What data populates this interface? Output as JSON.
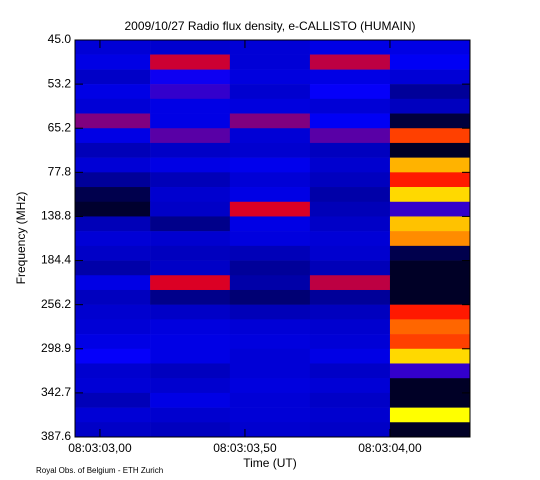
{
  "chart_data": {
    "type": "heatmap",
    "title": "2009/10/27  Radio flux density, e-CALLISTO (HUMAIN)",
    "x_label": "Time (UT)",
    "y_label": "Frequency (MHz)",
    "footer": "Royal Obs. of Belgium - ETH Zurich",
    "xbins": [
      28982.914,
      28983.173,
      28983.448,
      28983.724,
      28984.0,
      28984.276
    ],
    "xlim": [
      28982.914,
      28984.276
    ],
    "xticks": [
      {
        "value": 28983.0,
        "label": "08:03:03,00"
      },
      {
        "value": 28983.5,
        "label": "08:03:03,50"
      },
      {
        "value": 28984.0,
        "label": "08:03:04,00"
      }
    ],
    "ybins": [
      45.0,
      47.7,
      50.5,
      53.2,
      57.2,
      61.2,
      65.2,
      69.4,
      73.6,
      77.8,
      98.1,
      118.5,
      138.8,
      154.0,
      169.2,
      184.4,
      208.3,
      232.3,
      256.2,
      270.4,
      284.7,
      298.9,
      313.5,
      328.1,
      342.7,
      357.7,
      372.6,
      387.6
    ],
    "ylim": [
      45.0,
      387.6
    ],
    "yticks": [
      {
        "value": 45.0,
        "label": "45.0"
      },
      53.2,
      65.2,
      77.8,
      138.8,
      184.4,
      256.2,
      298.9,
      342.7,
      387.6
    ],
    "zlim": [
      0,
      100
    ],
    "colorscale": [
      "#000000",
      "#0000ff",
      "#ff0000",
      "#ffff00"
    ],
    "values": [
      [
        28,
        27,
        28,
        30,
        30
      ],
      [
        30,
        60,
        28,
        58,
        32
      ],
      [
        26,
        35,
        29,
        30,
        28
      ],
      [
        30,
        40,
        27,
        34,
        20
      ],
      [
        28,
        30,
        29,
        28,
        25
      ],
      [
        50,
        30,
        50,
        32,
        8
      ],
      [
        30,
        45,
        28,
        45,
        75
      ],
      [
        24,
        26,
        27,
        25,
        5
      ],
      [
        28,
        30,
        31,
        27,
        90
      ],
      [
        20,
        24,
        28,
        25,
        70
      ],
      [
        10,
        27,
        30,
        22,
        95
      ],
      [
        6,
        26,
        62,
        24,
        40
      ],
      [
        24,
        18,
        30,
        26,
        92
      ],
      [
        28,
        27,
        29,
        28,
        85
      ],
      [
        26,
        25,
        24,
        27,
        10
      ],
      [
        22,
        26,
        20,
        24,
        5
      ],
      [
        30,
        62,
        22,
        58,
        5
      ],
      [
        25,
        18,
        15,
        20,
        5
      ],
      [
        27,
        26,
        24,
        25,
        70
      ],
      [
        28,
        29,
        28,
        27,
        80
      ],
      [
        30,
        30,
        29,
        28,
        75
      ],
      [
        34,
        30,
        28,
        30,
        95
      ],
      [
        27,
        25,
        28,
        26,
        40
      ],
      [
        28,
        27,
        29,
        28,
        5
      ],
      [
        24,
        30,
        28,
        26,
        5
      ],
      [
        28,
        27,
        28,
        27,
        100
      ],
      [
        26,
        25,
        27,
        26,
        5
      ]
    ]
  }
}
